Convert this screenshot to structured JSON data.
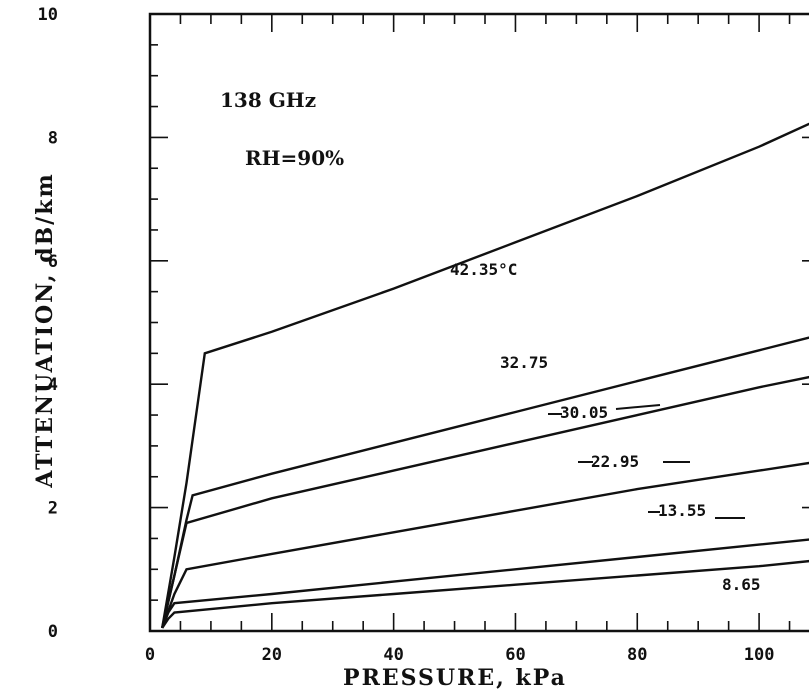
{
  "chart_data": {
    "type": "line",
    "title": "",
    "xlabel": "PRESSURE, kPa",
    "ylabel": "ATTENUATION, dB/km",
    "xlim": [
      0,
      110
    ],
    "ylim": [
      0,
      10
    ],
    "x_ticks": [
      "0",
      "20",
      "40",
      "60",
      "80",
      "100"
    ],
    "y_ticks": [
      "0",
      "2",
      "4",
      "6",
      "8",
      "10"
    ],
    "annotations": [
      "138 GHz",
      "RH=90%"
    ],
    "grid": false,
    "series": [
      {
        "name": "42.35°C",
        "x": [
          2,
          4,
          6,
          8,
          9,
          20,
          40,
          60,
          80,
          100,
          110
        ],
        "y": [
          0.05,
          1.2,
          2.4,
          3.8,
          4.5,
          4.85,
          5.55,
          6.3,
          7.05,
          7.85,
          8.3
        ]
      },
      {
        "name": "32.75",
        "x": [
          2,
          4,
          6,
          7,
          20,
          40,
          60,
          80,
          100,
          110
        ],
        "y": [
          0.05,
          0.9,
          1.8,
          2.2,
          2.55,
          3.05,
          3.55,
          4.05,
          4.55,
          4.8
        ]
      },
      {
        "name": "30.05",
        "x": [
          2,
          4,
          6,
          20,
          40,
          60,
          80,
          100,
          110
        ],
        "y": [
          0.05,
          0.9,
          1.75,
          2.15,
          2.6,
          3.05,
          3.5,
          3.95,
          4.15
        ]
      },
      {
        "name": "22.95",
        "x": [
          2,
          4,
          6,
          20,
          40,
          60,
          80,
          100,
          110
        ],
        "y": [
          0.05,
          0.6,
          1.0,
          1.25,
          1.6,
          1.95,
          2.3,
          2.6,
          2.75
        ]
      },
      {
        "name": "13.55",
        "x": [
          2,
          3,
          4,
          20,
          40,
          60,
          80,
          100,
          110
        ],
        "y": [
          0.05,
          0.3,
          0.45,
          0.6,
          0.8,
          1.0,
          1.2,
          1.4,
          1.5
        ]
      },
      {
        "name": "8.65",
        "x": [
          2,
          3,
          4,
          20,
          40,
          60,
          80,
          100,
          110
        ],
        "y": [
          0.05,
          0.2,
          0.3,
          0.45,
          0.6,
          0.75,
          0.9,
          1.05,
          1.15
        ]
      }
    ]
  }
}
